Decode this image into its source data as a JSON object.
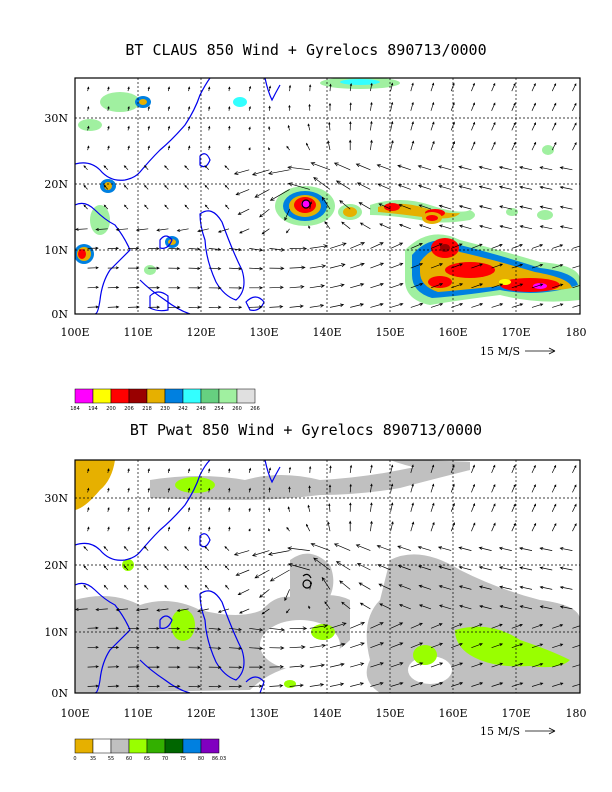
{
  "panels": [
    {
      "id": "top",
      "title": "BT CLAUS 850 Wind + Gyrelocs 890713/0000",
      "lat_labels": [
        "30N",
        "20N",
        "10N",
        "0N"
      ],
      "lon_labels": [
        "100E",
        "110E",
        "120E",
        "130E",
        "140E",
        "150E",
        "160E",
        "170E",
        "180"
      ],
      "vector_ref": "15 M/S",
      "legend_colors": [
        "#ff00ff",
        "#ffff00",
        "#ff0000",
        "#990000",
        "#e6b000",
        "#0080e0",
        "#33ffff",
        "#66d080",
        "#a0f0a0",
        "#e0e0e0"
      ],
      "legend_labels": [
        "184",
        "194",
        "200",
        "206",
        "218",
        "230",
        "242",
        "248",
        "254",
        "260",
        "266"
      ]
    },
    {
      "id": "bottom",
      "title": "BT Pwat 850 Wind + Gyrelocs 890713/0000",
      "lat_labels": [
        "30N",
        "20N",
        "10N",
        "0N"
      ],
      "lon_labels": [
        "100E",
        "110E",
        "120E",
        "130E",
        "140E",
        "150E",
        "160E",
        "170E",
        "180"
      ],
      "vector_ref": "15 M/S",
      "legend_colors": [
        "#e6b000",
        "#ffffff",
        "#c0c0c0",
        "#99ff00",
        "#33b000",
        "#006600",
        "#0080e0",
        "#8000c0"
      ],
      "legend_labels": [
        "0",
        "35",
        "55",
        "60",
        "65",
        "70",
        "75",
        "80",
        "86.03"
      ]
    }
  ],
  "map": {
    "lon_range": [
      100,
      180
    ],
    "lat_range": [
      0,
      36
    ],
    "grid_lon": [
      110,
      120,
      130,
      140,
      150,
      160,
      170
    ],
    "grid_lat": [
      10,
      20,
      30
    ],
    "gyre_location": {
      "lon": 136.5,
      "lat": 17.5
    }
  }
}
